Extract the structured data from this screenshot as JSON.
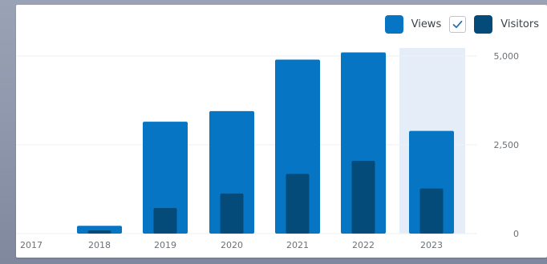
{
  "legend": {
    "views_label": "Views",
    "visitors_label": "Visitors",
    "views_icon": "views-swatch",
    "visitors_icon": "visitors-swatch",
    "checkbox_icon": "checkmark-icon"
  },
  "colors": {
    "views": "#0675c4",
    "visitors": "#044b7a",
    "highlight": "#e5eef8",
    "grid": "#edf0f2",
    "tick": "#6b7177",
    "checkmark": "#2271b1"
  },
  "chart_data": {
    "type": "bar",
    "categories": [
      "2017",
      "2018",
      "2019",
      "2020",
      "2021",
      "2022",
      "2023"
    ],
    "series": [
      {
        "name": "Views",
        "values": [
          0,
          220,
          3150,
          3450,
          4900,
          5100,
          2890
        ]
      },
      {
        "name": "Visitors",
        "values": [
          0,
          90,
          720,
          1130,
          1680,
          2050,
          1270
        ]
      }
    ],
    "ylim": [
      0,
      5000
    ],
    "y_ticks": [
      "0",
      "2,500",
      "5,000"
    ],
    "y_tick_values": [
      0,
      2500,
      5000
    ],
    "y_axis_side": "right",
    "highlighted_category": "2023",
    "grid": true,
    "legend_position": "top-right",
    "title": "",
    "xlabel": "",
    "ylabel": ""
  }
}
